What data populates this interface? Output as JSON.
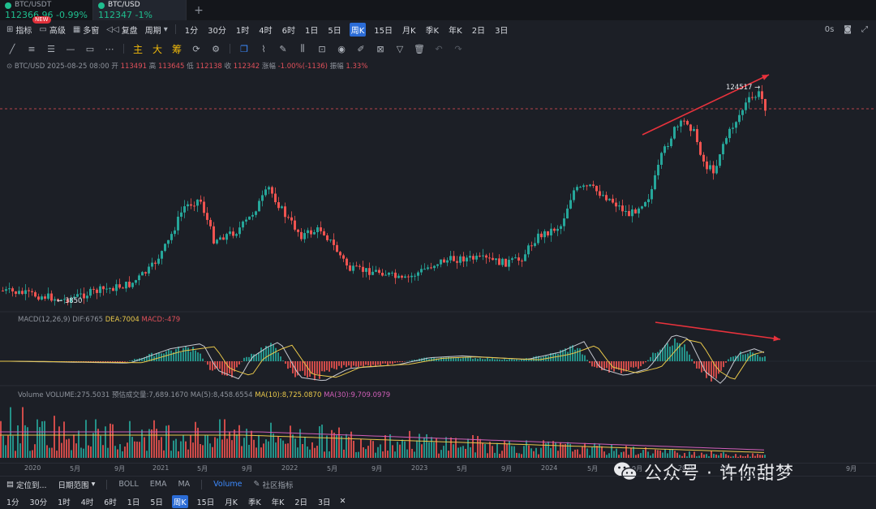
{
  "tabs": [
    {
      "name": "BTC/USDT",
      "price": "112366.96",
      "change": "-0.99%"
    },
    {
      "name": "BTC/USD",
      "price": "112347",
      "change": "-1%"
    }
  ],
  "new_badge": "NEW",
  "toolbar": {
    "indicator": "指标",
    "advanced": "高级",
    "multiwindow": "多窗",
    "replay": "复盘",
    "period": "周期",
    "timeframes": [
      "1分",
      "30分",
      "1时",
      "4时",
      "6时",
      "1日",
      "5日",
      "周K",
      "15日",
      "月K",
      "季K",
      "年K",
      "2日",
      "3日"
    ],
    "active_tf": "周K",
    "countdown": "0s"
  },
  "drawtools": {
    "main": "主",
    "big": "大",
    "chips": "筹"
  },
  "info": {
    "symbol": "BTC/USD",
    "date": "2025-08-25 08:00",
    "open_label": "开",
    "open": "113491",
    "high_label": "高",
    "high": "113645",
    "low_label": "低",
    "low": "112138",
    "close_label": "收",
    "close": "112342",
    "change_label": "涨幅",
    "change": "-1.00%(-1136)",
    "amp_label": "振幅",
    "amp": "1.33%"
  },
  "price_labels": {
    "high": "124517",
    "low": "3850"
  },
  "macd": {
    "label": "MACD(12,26,9)",
    "dif": "DIF:6765",
    "dea": "DEA:7004",
    "macd": "MACD:-479"
  },
  "volume": {
    "label": "Volume",
    "vol": "VOLUME:275.5031",
    "est": "预估成交量:7,689.1670",
    "ma5": "MA(5):8,458.6554",
    "ma10": "MA(10):8,725.0870",
    "ma30": "MA(30):9,709.0979"
  },
  "xaxis": [
    "2020",
    "5月",
    "9月",
    "2021",
    "5月",
    "9月",
    "2022",
    "5月",
    "9月",
    "2023",
    "5月",
    "9月",
    "2024",
    "5月",
    "9月",
    "2025",
    "5月",
    "9月"
  ],
  "bottom": {
    "locate": "定位到...",
    "range": "日期范围",
    "boll": "BOLL",
    "ema": "EMA",
    "ma": "MA",
    "volume": "Volume",
    "community": "社区指标"
  },
  "bottom_tfs": [
    "1分",
    "30分",
    "1时",
    "4时",
    "6时",
    "1日",
    "5日",
    "周K",
    "15日",
    "月K",
    "季K",
    "年K",
    "2日",
    "3日"
  ],
  "watermark": "公众号 · 许你甜梦",
  "colors": {
    "up": "#26a69a",
    "down": "#ef5350",
    "accent": "#2b6cd6",
    "dif": "#c7c9d1",
    "dea": "#e8c74a",
    "ma30": "#d05fb8",
    "arrow": "#e8323c"
  }
}
